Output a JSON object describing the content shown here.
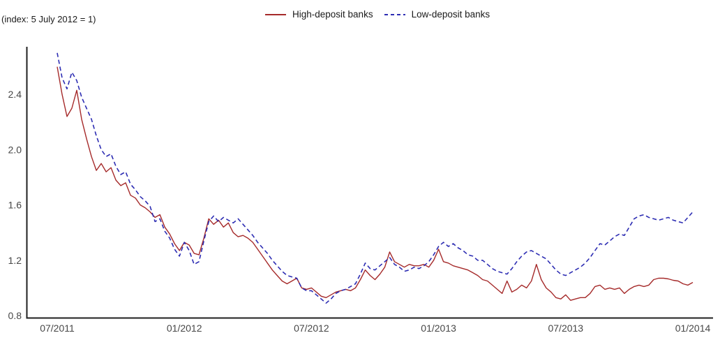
{
  "chart": {
    "index_note": "(index: 5 July 2012 = 1)",
    "legend": [
      {
        "label": "High-deposit banks",
        "style": "solid",
        "color": "#A52A2A"
      },
      {
        "label": "Low-deposit banks",
        "style": "dashed",
        "color": "#2D2DB3"
      }
    ]
  },
  "chart_data": {
    "type": "line",
    "title": "",
    "index_note": "(index: 5 July 2012 = 1)",
    "xlabel": "",
    "ylabel": "(index: 5 July 2012 = 1)",
    "x_tick_labels": [
      "07/2011",
      "01/2012",
      "07/2012",
      "01/2013",
      "07/2013",
      "01/2014"
    ],
    "y_tick_values": [
      2.4,
      2.0,
      1.6,
      1.2,
      0.8
    ],
    "y_tick_labels": [
      "2.4",
      "2.0",
      "1.6",
      "1.2",
      "0.8"
    ],
    "ylim": [
      0.77,
      2.74
    ],
    "x_range_note": "weekly observations from early July 2011 to early January 2014",
    "grid": false,
    "legend_position": "top-center",
    "series": [
      {
        "name": "High-deposit banks",
        "color": "#A52A2A",
        "line_style": "solid",
        "values": [
          2.6,
          2.4,
          2.24,
          2.3,
          2.43,
          2.22,
          2.08,
          1.95,
          1.85,
          1.9,
          1.84,
          1.87,
          1.78,
          1.74,
          1.76,
          1.67,
          1.65,
          1.6,
          1.58,
          1.55,
          1.51,
          1.53,
          1.44,
          1.39,
          1.32,
          1.27,
          1.33,
          1.31,
          1.25,
          1.24,
          1.36,
          1.5,
          1.46,
          1.49,
          1.44,
          1.47,
          1.4,
          1.37,
          1.38,
          1.36,
          1.33,
          1.28,
          1.23,
          1.18,
          1.13,
          1.09,
          1.05,
          1.03,
          1.05,
          1.07,
          1.0,
          0.99,
          1.0,
          0.97,
          0.94,
          0.93,
          0.95,
          0.97,
          0.98,
          0.99,
          0.98,
          1.0,
          1.06,
          1.13,
          1.09,
          1.06,
          1.1,
          1.15,
          1.26,
          1.19,
          1.17,
          1.15,
          1.17,
          1.16,
          1.16,
          1.17,
          1.15,
          1.2,
          1.28,
          1.19,
          1.18,
          1.16,
          1.15,
          1.14,
          1.13,
          1.11,
          1.09,
          1.06,
          1.05,
          1.02,
          0.99,
          0.96,
          1.05,
          0.97,
          0.99,
          1.02,
          1.0,
          1.05,
          1.17,
          1.06,
          1.0,
          0.97,
          0.93,
          0.92,
          0.95,
          0.91,
          0.92,
          0.93,
          0.93,
          0.96,
          1.01,
          1.02,
          0.99,
          1.0,
          0.99,
          1.0,
          0.96,
          0.99,
          1.01,
          1.02,
          1.01,
          1.02,
          1.06,
          1.07,
          1.07,
          1.065,
          1.055,
          1.05,
          1.03,
          1.02,
          1.04
        ]
      },
      {
        "name": "Low-deposit banks",
        "color": "#2D2DB3",
        "line_style": "dashed",
        "values": [
          2.7,
          2.52,
          2.44,
          2.56,
          2.5,
          2.38,
          2.3,
          2.22,
          2.1,
          2.0,
          1.95,
          1.97,
          1.88,
          1.82,
          1.84,
          1.75,
          1.71,
          1.66,
          1.63,
          1.59,
          1.48,
          1.5,
          1.41,
          1.36,
          1.28,
          1.23,
          1.33,
          1.27,
          1.17,
          1.19,
          1.34,
          1.48,
          1.52,
          1.48,
          1.51,
          1.49,
          1.47,
          1.5,
          1.46,
          1.42,
          1.38,
          1.33,
          1.29,
          1.25,
          1.2,
          1.16,
          1.12,
          1.09,
          1.08,
          1.07,
          1.0,
          0.98,
          0.98,
          0.95,
          0.92,
          0.89,
          0.92,
          0.96,
          0.98,
          0.99,
          1.01,
          1.03,
          1.1,
          1.18,
          1.14,
          1.13,
          1.16,
          1.19,
          1.22,
          1.17,
          1.15,
          1.12,
          1.13,
          1.15,
          1.14,
          1.16,
          1.19,
          1.24,
          1.3,
          1.33,
          1.3,
          1.32,
          1.29,
          1.27,
          1.24,
          1.23,
          1.2,
          1.2,
          1.17,
          1.14,
          1.12,
          1.11,
          1.1,
          1.14,
          1.19,
          1.23,
          1.26,
          1.27,
          1.25,
          1.23,
          1.21,
          1.17,
          1.13,
          1.1,
          1.09,
          1.11,
          1.13,
          1.15,
          1.18,
          1.22,
          1.27,
          1.32,
          1.31,
          1.34,
          1.37,
          1.39,
          1.38,
          1.44,
          1.5,
          1.52,
          1.53,
          1.51,
          1.5,
          1.49,
          1.5,
          1.51,
          1.49,
          1.48,
          1.47,
          1.51,
          1.55
        ]
      }
    ]
  }
}
